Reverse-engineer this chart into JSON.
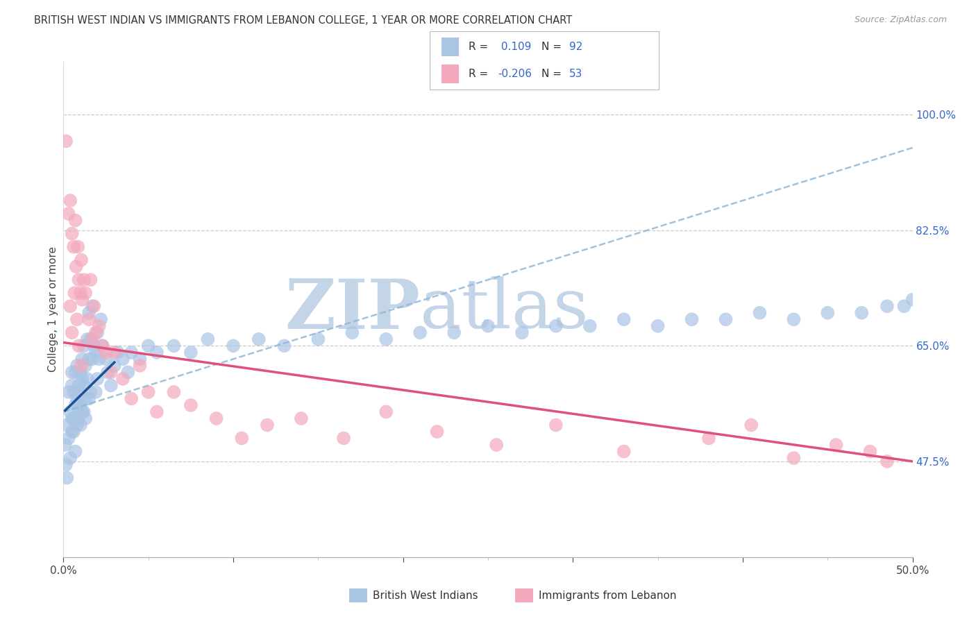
{
  "title": "BRITISH WEST INDIAN VS IMMIGRANTS FROM LEBANON COLLEGE, 1 YEAR OR MORE CORRELATION CHART",
  "source": "Source: ZipAtlas.com",
  "ylabel": "College, 1 year or more",
  "right_ytick_labels": [
    "47.5%",
    "65.0%",
    "82.5%",
    "100.0%"
  ],
  "right_ytick_values": [
    47.5,
    65.0,
    82.5,
    100.0
  ],
  "xlim": [
    0.0,
    50.0
  ],
  "ylim": [
    33.0,
    108.0
  ],
  "legend_label1": "British West Indians",
  "legend_label2": "Immigrants from Lebanon",
  "blue_scatter_color": "#aac4e4",
  "pink_scatter_color": "#f4a8bc",
  "blue_trend_dashed_color": "#90b8d8",
  "blue_trend_solid_color": "#1a5296",
  "pink_trend_color": "#e0507a",
  "watermark_zip": "ZIP",
  "watermark_atlas": "atlas",
  "watermark_color_zip": "#c5d5e8",
  "watermark_color_atlas": "#c5d5e8",
  "R_blue": 0.109,
  "N_blue": 92,
  "R_pink": -0.206,
  "N_pink": 53,
  "blue_x": [
    0.1,
    0.15,
    0.2,
    0.2,
    0.3,
    0.3,
    0.4,
    0.4,
    0.5,
    0.5,
    0.5,
    0.5,
    0.6,
    0.6,
    0.6,
    0.7,
    0.7,
    0.7,
    0.7,
    0.8,
    0.8,
    0.8,
    0.9,
    0.9,
    0.9,
    1.0,
    1.0,
    1.0,
    1.0,
    1.1,
    1.1,
    1.1,
    1.2,
    1.2,
    1.2,
    1.3,
    1.3,
    1.3,
    1.4,
    1.4,
    1.5,
    1.5,
    1.5,
    1.6,
    1.6,
    1.7,
    1.7,
    1.8,
    1.9,
    1.9,
    2.0,
    2.0,
    2.1,
    2.2,
    2.3,
    2.5,
    2.6,
    2.8,
    3.0,
    3.2,
    3.5,
    3.8,
    4.0,
    4.5,
    5.0,
    5.5,
    6.5,
    7.5,
    8.5,
    10.0,
    11.5,
    13.0,
    15.0,
    17.0,
    19.0,
    21.0,
    23.0,
    25.0,
    27.0,
    29.0,
    31.0,
    33.0,
    35.0,
    37.0,
    39.0,
    41.0,
    43.0,
    45.0,
    47.0,
    48.5,
    49.5,
    50.0
  ],
  "blue_y": [
    50.0,
    47.0,
    45.0,
    53.0,
    51.0,
    58.0,
    48.0,
    55.0,
    54.0,
    59.0,
    52.0,
    61.0,
    54.0,
    58.0,
    52.0,
    56.0,
    61.0,
    54.0,
    49.0,
    57.0,
    53.0,
    62.0,
    59.0,
    54.0,
    56.0,
    58.0,
    53.0,
    61.0,
    56.0,
    60.0,
    55.0,
    63.0,
    59.0,
    55.0,
    65.0,
    62.0,
    57.0,
    54.0,
    66.0,
    60.0,
    63.0,
    57.0,
    70.0,
    66.0,
    58.0,
    71.0,
    63.0,
    65.0,
    64.0,
    58.0,
    67.0,
    60.0,
    63.0,
    69.0,
    65.0,
    63.0,
    61.0,
    59.0,
    62.0,
    64.0,
    63.0,
    61.0,
    64.0,
    63.0,
    65.0,
    64.0,
    65.0,
    64.0,
    66.0,
    65.0,
    66.0,
    65.0,
    66.0,
    67.0,
    66.0,
    67.0,
    67.0,
    68.0,
    67.0,
    68.0,
    68.0,
    69.0,
    68.0,
    69.0,
    69.0,
    70.0,
    69.0,
    70.0,
    70.0,
    71.0,
    71.0,
    72.0
  ],
  "pink_x": [
    0.15,
    0.3,
    0.4,
    0.5,
    0.6,
    0.7,
    0.75,
    0.85,
    0.9,
    1.0,
    1.05,
    1.1,
    1.2,
    1.3,
    1.5,
    1.6,
    1.7,
    1.8,
    1.9,
    2.1,
    2.3,
    2.5,
    2.8,
    3.0,
    3.5,
    4.0,
    4.5,
    5.0,
    5.5,
    6.5,
    7.5,
    9.0,
    10.5,
    12.0,
    14.0,
    16.5,
    19.0,
    22.0,
    25.5,
    29.0,
    33.0,
    38.0,
    40.5,
    43.0,
    45.5,
    47.5,
    48.5,
    0.4,
    0.5,
    0.65,
    0.8,
    0.9,
    1.05
  ],
  "pink_y": [
    96.0,
    85.0,
    87.0,
    82.0,
    80.0,
    84.0,
    77.0,
    80.0,
    75.0,
    73.0,
    78.0,
    72.0,
    75.0,
    73.0,
    69.0,
    75.0,
    66.0,
    71.0,
    67.0,
    68.0,
    65.0,
    64.0,
    61.0,
    64.0,
    60.0,
    57.0,
    62.0,
    58.0,
    55.0,
    58.0,
    56.0,
    54.0,
    51.0,
    53.0,
    54.0,
    51.0,
    55.0,
    52.0,
    50.0,
    53.0,
    49.0,
    51.0,
    53.0,
    48.0,
    50.0,
    49.0,
    47.5,
    71.0,
    67.0,
    73.0,
    69.0,
    65.0,
    62.0
  ],
  "blue_trend_dashed_x0": 0.0,
  "blue_trend_dashed_y0": 55.0,
  "blue_trend_dashed_x1": 50.0,
  "blue_trend_dashed_y1": 95.0,
  "blue_trend_solid_x0": 0.1,
  "blue_trend_solid_y0": 55.2,
  "blue_trend_solid_x1": 3.0,
  "blue_trend_solid_y1": 62.5,
  "pink_trend_x0": 0.0,
  "pink_trend_y0": 65.5,
  "pink_trend_x1": 50.0,
  "pink_trend_y1": 47.5
}
